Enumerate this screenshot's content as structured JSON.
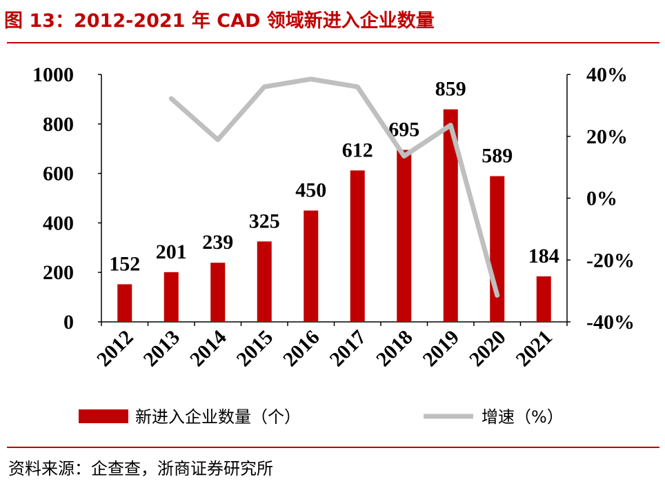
{
  "header": {
    "title": "图 13：2012-2021 年 CAD 领域新进入企业数量"
  },
  "footer": {
    "source": "资料来源：企查查，浙商证券研究所"
  },
  "colors": {
    "bar": "#c00000",
    "line": "#bfbfbf",
    "accent": "#c00000"
  },
  "chart_data": {
    "type": "bar",
    "categories": [
      "2012",
      "2013",
      "2014",
      "2015",
      "2016",
      "2017",
      "2018",
      "2019",
      "2020",
      "2021"
    ],
    "series": [
      {
        "name": "新进入企业数量（个）",
        "type": "bar",
        "axis": "left",
        "values": [
          152,
          201,
          239,
          325,
          450,
          612,
          695,
          859,
          589,
          184
        ]
      },
      {
        "name": "增速（%）",
        "type": "line",
        "axis": "right",
        "values": [
          null,
          32.2,
          18.9,
          36.0,
          38.5,
          36.0,
          13.6,
          23.6,
          -31.4,
          null
        ]
      }
    ],
    "y_left": {
      "ylim": [
        0,
        1000
      ],
      "ticks": [
        "0",
        "200",
        "400",
        "600",
        "800",
        "1000"
      ]
    },
    "y_right": {
      "ylim": [
        -40,
        40
      ],
      "ticks": [
        "-40%",
        "-20%",
        "0%",
        "20%",
        "40%"
      ]
    },
    "grid": false,
    "legend": "bottom"
  }
}
